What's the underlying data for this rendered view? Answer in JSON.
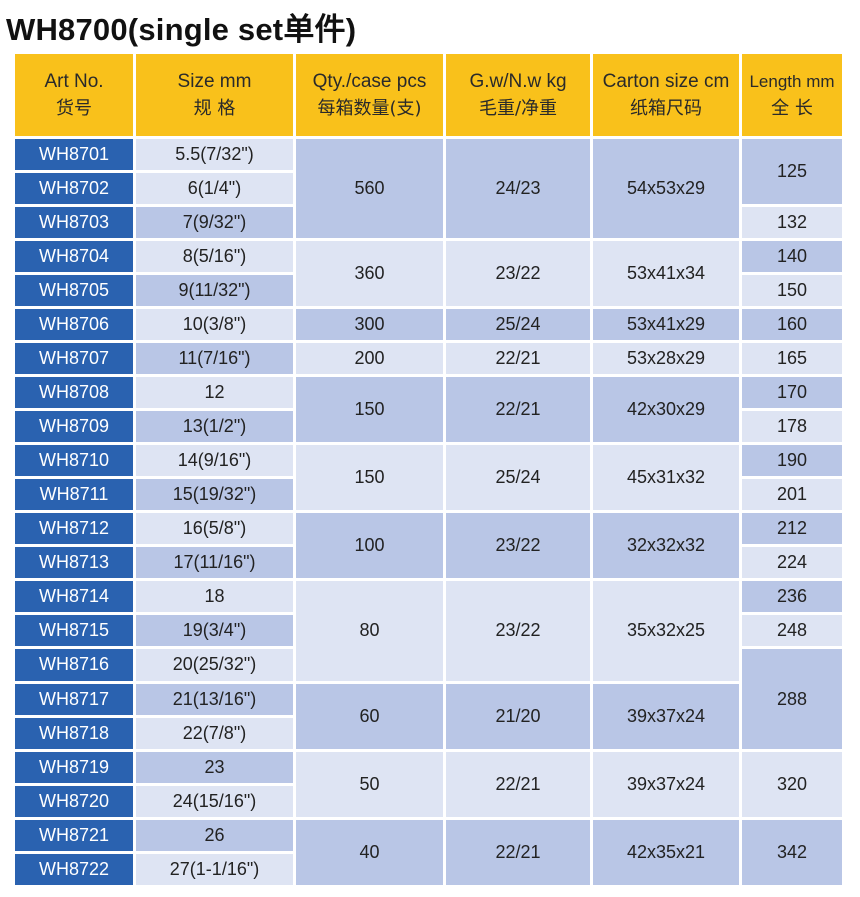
{
  "title": "WH8700(single set单件)",
  "headers": [
    {
      "en": "Art No.",
      "cn": "货号"
    },
    {
      "en": "Size mm",
      "cn": "规 格"
    },
    {
      "en": "Qty./case pcs",
      "cn": "每箱数量(支)"
    },
    {
      "en": "G.w/N.w kg",
      "cn": "毛重/净重"
    },
    {
      "en": "Carton size cm",
      "cn": "纸箱尺码"
    },
    {
      "en": "Length mm",
      "cn": "全 长"
    }
  ],
  "art_no": [
    "WH8701",
    "WH8702",
    "WH8703",
    "WH8704",
    "WH8705",
    "WH8706",
    "WH8707",
    "WH8708",
    "WH8709",
    "WH8710",
    "WH8711",
    "WH8712",
    "WH8713",
    "WH8714",
    "WH8715",
    "WH8716",
    "WH8717",
    "WH8718",
    "WH8719",
    "WH8720",
    "WH8721",
    "WH8722"
  ],
  "size": [
    "5.5(7/32\")",
    "6(1/4\")",
    "7(9/32\")",
    "8(5/16\")",
    "9(11/32\")",
    "10(3/8\")",
    "11(7/16\")",
    "12",
    "13(1/2\")",
    "14(9/16\")",
    "15(19/32\")",
    "16(5/8\")",
    "17(11/16\")",
    "18",
    "19(3/4\")",
    "20(25/32\")",
    "21(13/16\")",
    "22(7/8\")",
    "23",
    "24(15/16\")",
    "26",
    "27(1-1/16\")"
  ],
  "groups": [
    {
      "qty": "560",
      "weight": "24/23",
      "carton": "54x53x29"
    },
    {
      "qty": "360",
      "weight": "23/22",
      "carton": "53x41x34"
    },
    {
      "qty": "300",
      "weight": "25/24",
      "carton": "53x41x29"
    },
    {
      "qty": "200",
      "weight": "22/21",
      "carton": "53x28x29"
    },
    {
      "qty": "150",
      "weight": "22/21",
      "carton": "42x30x29"
    },
    {
      "qty": "150",
      "weight": "25/24",
      "carton": "45x31x32"
    },
    {
      "qty": "100",
      "weight": "23/22",
      "carton": "32x32x32"
    },
    {
      "qty": "80",
      "weight": "23/22",
      "carton": "35x32x25"
    },
    {
      "qty": "60",
      "weight": "21/20",
      "carton": "39x37x24"
    },
    {
      "qty": "50",
      "weight": "22/21",
      "carton": "39x37x24"
    },
    {
      "qty": "40",
      "weight": "22/21",
      "carton": "42x35x21"
    }
  ],
  "length": [
    "125",
    "132",
    "140",
    "150",
    "160",
    "165",
    "170",
    "178",
    "190",
    "201",
    "212",
    "224",
    "236",
    "248",
    "288",
    "320",
    "342"
  ],
  "colors": {
    "header": "#f9c11b",
    "art_no": "#2a62b0",
    "cell_dark": "#b9c6e6",
    "cell_light": "#dee4f3"
  }
}
